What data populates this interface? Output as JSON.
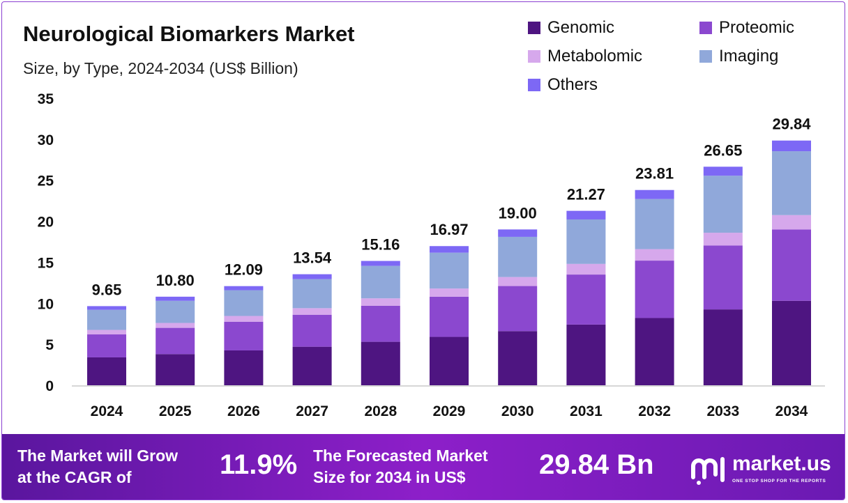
{
  "title": "Neurological Biomarkers Market",
  "subtitle": "Size, by Type, 2024-2034 (US$ Billion)",
  "legend": [
    {
      "label": "Genomic",
      "color": "#4e1581"
    },
    {
      "label": "Proteomic",
      "color": "#8b48cf"
    },
    {
      "label": "Metabolomic",
      "color": "#d6a8ec"
    },
    {
      "label": "Imaging",
      "color": "#90a8da"
    },
    {
      "label": "Others",
      "color": "#7d68f5"
    }
  ],
  "chart_data": {
    "type": "bar",
    "stacked": true,
    "categories": [
      "2024",
      "2025",
      "2026",
      "2027",
      "2028",
      "2029",
      "2030",
      "2031",
      "2032",
      "2033",
      "2034"
    ],
    "series": [
      {
        "name": "Genomic",
        "color": "#4e1581",
        "values": [
          3.4,
          3.8,
          4.25,
          4.7,
          5.3,
          5.9,
          6.6,
          7.4,
          8.2,
          9.25,
          10.3
        ]
      },
      {
        "name": "Proteomic",
        "color": "#8b48cf",
        "values": [
          2.8,
          3.2,
          3.5,
          3.9,
          4.4,
          4.9,
          5.5,
          6.1,
          7.0,
          7.8,
          8.7
        ]
      },
      {
        "name": "Metabolomic",
        "color": "#d6a8ec",
        "values": [
          0.55,
          0.6,
          0.7,
          0.8,
          0.9,
          1.0,
          1.1,
          1.3,
          1.4,
          1.55,
          1.75
        ]
      },
      {
        "name": "Imaging",
        "color": "#90a8da",
        "values": [
          2.45,
          2.7,
          3.14,
          3.54,
          3.96,
          4.37,
          4.9,
          5.42,
          6.11,
          6.95,
          7.79
        ]
      },
      {
        "name": "Others",
        "color": "#7d68f5",
        "values": [
          0.45,
          0.5,
          0.5,
          0.6,
          0.6,
          0.8,
          0.9,
          1.05,
          1.1,
          1.1,
          1.3
        ]
      }
    ],
    "totals": [
      "9.65",
      "10.80",
      "12.09",
      "13.54",
      "15.16",
      "16.97",
      "19.00",
      "21.27",
      "23.81",
      "26.65",
      "29.84"
    ],
    "ylim": [
      0,
      35
    ],
    "yticks": [
      "0",
      "5",
      "10",
      "15",
      "20",
      "25",
      "30",
      "35"
    ],
    "grid": false,
    "legend_position": "top-right"
  },
  "footer": {
    "cagr_text_line1": "The Market will Grow",
    "cagr_text_line2": "at the CAGR of",
    "cagr_value": "11.9%",
    "forecast_text_line1": "The Forecasted Market",
    "forecast_text_line2": "Size for 2034 in US$",
    "forecast_value": "29.84 Bn",
    "logo_name": "market.us",
    "logo_tagline": "ONE STOP SHOP FOR THE REPORTS"
  }
}
